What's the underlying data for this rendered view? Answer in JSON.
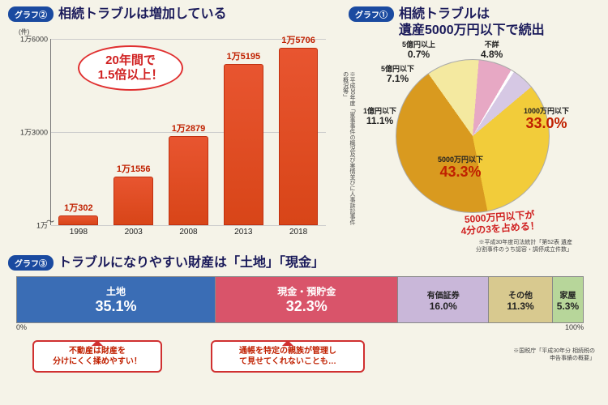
{
  "background_color": "#f5f3e8",
  "bar_chart": {
    "badge": "グラフ②",
    "title": "相続トラブルは増加している",
    "y_unit": "(件)",
    "ylim": [
      10000,
      16000
    ],
    "yticks": [
      {
        "v": 10000,
        "label": "1万"
      },
      {
        "v": 13000,
        "label": "1万3000"
      },
      {
        "v": 16000,
        "label": "1万6000"
      }
    ],
    "axis_break": "〜",
    "bars": [
      {
        "year": "1998",
        "value": 10302,
        "label": "1万302"
      },
      {
        "year": "2003",
        "value": 11556,
        "label": "1万1556"
      },
      {
        "year": "2008",
        "value": 12879,
        "label": "1万2879"
      },
      {
        "year": "2013",
        "value": 15195,
        "label": "1万5195"
      },
      {
        "year": "2018",
        "value": 15706,
        "label": "1万5706"
      }
    ],
    "bar_color": "#e85530",
    "bar_border": "#c03010",
    "callout": {
      "line1": "20年間で",
      "line2": "1.5倍以上！"
    },
    "source": "※平成30年度「家事事件の概況及び実情並びに人事訴訟事件の概況等」"
  },
  "pie_chart": {
    "badge": "グラフ①",
    "title_l1": "相続トラブルは",
    "title_l2": "遺産5000万円以下で続出",
    "slices": [
      {
        "name": "1000万円以下",
        "pct": 33.0,
        "pct_label": "33.0%",
        "color": "#f2cc3a",
        "big": true
      },
      {
        "name": "5000万円以下",
        "pct": 43.3,
        "pct_label": "43.3%",
        "color": "#d99a1f",
        "big": true
      },
      {
        "name": "1億円以下",
        "pct": 11.1,
        "pct_label": "11.1%",
        "color": "#f4e9a0",
        "big": false
      },
      {
        "name": "5億円以下",
        "pct": 7.1,
        "pct_label": "7.1%",
        "color": "#e7a8c4",
        "big": false
      },
      {
        "name": "5億円以上",
        "pct": 0.7,
        "pct_label": "0.7%",
        "color": "#ffffff",
        "big": false
      },
      {
        "name": "不詳",
        "pct": 4.8,
        "pct_label": "4.8%",
        "color": "#d6c8e4",
        "big": false
      }
    ],
    "callout_l1": "5000万円以下が",
    "callout_l2": "4分の3を占める！",
    "source_l1": "※平成30年度司法統計「第52表 遺産",
    "source_l2": "分割事件のうち認容・調停成立件数」"
  },
  "stacked_bar": {
    "badge": "グラフ③",
    "title": "トラブルになりやすい財産は「土地」「現金」",
    "scale_left": "0%",
    "scale_right": "100%",
    "segments": [
      {
        "name": "土地",
        "pct": 35.1,
        "pct_label": "35.1%",
        "color": "#3a6db5",
        "text_light": true
      },
      {
        "name": "現金・預貯金",
        "pct": 32.3,
        "pct_label": "32.3%",
        "color": "#d9546a",
        "text_light": true
      },
      {
        "name": "有価証券",
        "pct": 16.0,
        "pct_label": "16.0%",
        "color": "#c9b7d9",
        "text_light": false
      },
      {
        "name": "その他",
        "pct": 11.3,
        "pct_label": "11.3%",
        "color": "#d8c98f",
        "text_light": false
      },
      {
        "name": "家屋",
        "pct": 5.3,
        "pct_label": "5.3%",
        "color": "#b7d69a",
        "text_light": false
      }
    ],
    "note_left_l1": "不動産は財産を",
    "note_left_l2": "分けにくく揉めやすい！",
    "note_right_l1": "通帳を特定の親族が管理し",
    "note_right_l2": "て見せてくれないことも…",
    "source_l1": "※国税庁「平成30年分 相続税の",
    "source_l2": "申告事績の概要」"
  }
}
